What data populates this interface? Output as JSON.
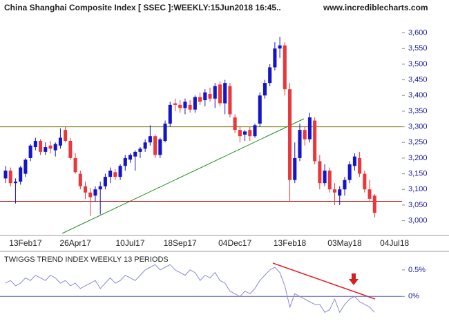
{
  "chart_data": [
    {
      "type": "candlestick",
      "title": "China Shanghai Composite Index [ SSEC ]:WEEKLY:15Jun2018 16:45..",
      "subtitle": "www.incrediblecharts.com",
      "categories": [
        null,
        null,
        null,
        null,
        "13Feb17",
        null,
        null,
        null,
        null,
        null,
        null,
        null,
        null,
        null,
        "26Apr17",
        null,
        null,
        null,
        null,
        null,
        null,
        null,
        null,
        null,
        null,
        "10Jul17",
        null,
        null,
        null,
        null,
        null,
        null,
        null,
        null,
        null,
        "18Sep17",
        null,
        null,
        null,
        null,
        null,
        null,
        null,
        null,
        null,
        null,
        "04Dec17",
        null,
        null,
        null,
        null,
        null,
        null,
        null,
        null,
        null,
        null,
        "13Feb18",
        null,
        null,
        null,
        null,
        null,
        null,
        null,
        null,
        null,
        null,
        "03May18",
        null,
        null,
        null,
        null,
        null,
        null,
        null,
        null,
        null,
        "04Jul18",
        null
      ],
      "open": [
        3135,
        3160,
        3120,
        3125,
        3150,
        3200,
        3235,
        3255,
        3220,
        3240,
        3225,
        3240,
        3290,
        3255,
        3200,
        3150,
        3110,
        3090,
        3080,
        3100,
        3110,
        3140,
        3155,
        3140,
        3175,
        3195,
        3205,
        3220,
        3230,
        3250,
        3270,
        3210,
        3255,
        3310,
        3375,
        3370,
        3360,
        3370,
        3355,
        3395,
        3385,
        3405,
        3390,
        3435,
        3375,
        3430,
        3330,
        3290,
        3275,
        3290,
        3270,
        3310,
        3400,
        3440,
        3490,
        3550,
        3560,
        3420,
        3130,
        3200,
        3290,
        3260,
        3320,
        3190,
        3120,
        3160,
        3100,
        3080,
        3100,
        3130,
        3175,
        3200,
        3150,
        3100,
        3080,
        null,
        null,
        null,
        null,
        null
      ],
      "high": [
        3175,
        3170,
        3135,
        3175,
        3200,
        3245,
        3265,
        3260,
        3250,
        3255,
        3250,
        3295,
        3300,
        3265,
        3215,
        3160,
        3125,
        3105,
        3110,
        3125,
        3150,
        3170,
        3165,
        3180,
        3210,
        3215,
        3225,
        3235,
        3260,
        3305,
        3275,
        3265,
        3320,
        3380,
        3390,
        3385,
        3390,
        3385,
        3400,
        3410,
        3420,
        3425,
        3440,
        3445,
        3450,
        3440,
        3340,
        3300,
        3290,
        3300,
        3310,
        3410,
        3450,
        3500,
        3570,
        3587,
        3570,
        3440,
        3250,
        3310,
        3300,
        3345,
        3330,
        3210,
        3180,
        3170,
        3120,
        3110,
        3140,
        3190,
        3215,
        3220,
        3160,
        3130,
        3085,
        null,
        null,
        null,
        null,
        null
      ],
      "low": [
        3120,
        3110,
        3055,
        3115,
        3140,
        3190,
        3225,
        3210,
        3210,
        3215,
        3205,
        3230,
        3250,
        3195,
        3150,
        3100,
        3070,
        3015,
        3060,
        3020,
        3100,
        3120,
        3130,
        3130,
        3160,
        3185,
        3160,
        3200,
        3220,
        3240,
        3200,
        3200,
        3250,
        3300,
        3350,
        3345,
        3340,
        3345,
        3345,
        3370,
        3365,
        3380,
        3360,
        3365,
        3340,
        3330,
        3280,
        3250,
        3255,
        3255,
        3265,
        3300,
        3390,
        3430,
        3480,
        3520,
        3400,
        3060,
        3120,
        3190,
        3240,
        3250,
        3180,
        3100,
        3110,
        3090,
        3050,
        3050,
        3080,
        3120,
        3160,
        3140,
        3090,
        3060,
        3010,
        null,
        null,
        null,
        null,
        null
      ],
      "close": [
        3160,
        3120,
        3125,
        3170,
        3195,
        3240,
        3255,
        3220,
        3235,
        3230,
        3245,
        3265,
        3255,
        3200,
        3155,
        3110,
        3090,
        3075,
        3100,
        3110,
        3140,
        3160,
        3140,
        3175,
        3200,
        3210,
        3220,
        3230,
        3250,
        3270,
        3210,
        3260,
        3310,
        3370,
        3370,
        3360,
        3380,
        3355,
        3395,
        3380,
        3410,
        3390,
        3430,
        3375,
        3440,
        3340,
        3290,
        3270,
        3285,
        3270,
        3305,
        3400,
        3440,
        3490,
        3550,
        3560,
        3420,
        3130,
        3200,
        3290,
        3260,
        3330,
        3190,
        3120,
        3160,
        3100,
        3090,
        3100,
        3130,
        3180,
        3205,
        3150,
        3100,
        3070,
        3025,
        null,
        null,
        null,
        null,
        null
      ],
      "up_color": "#1414c8",
      "down_color": "#e8383c",
      "ylim": [
        2955,
        3705
      ],
      "yticks": [
        {
          "value": 3000,
          "label": "3,000"
        },
        {
          "value": 3050,
          "label": "3,050"
        },
        {
          "value": 3100,
          "label": "3,100"
        },
        {
          "value": 3150,
          "label": "3,150"
        },
        {
          "value": 3200,
          "label": "3,200"
        },
        {
          "value": 3250,
          "label": "3,250"
        },
        {
          "value": 3300,
          "label": "3,300"
        },
        {
          "value": 3350,
          "label": "3,350"
        },
        {
          "value": 3400,
          "label": "3,400"
        },
        {
          "value": 3450,
          "label": "3,450"
        },
        {
          "value": 3500,
          "label": "3,500"
        },
        {
          "value": 3550,
          "label": "3,550"
        },
        {
          "value": 3600,
          "label": "3,600"
        }
      ],
      "hlines": [
        {
          "value": 3300,
          "color": "#707000"
        },
        {
          "value": 3062,
          "color": "#c00000"
        }
      ]
    },
    {
      "type": "line",
      "title": "TWIGGS TREND INDEX WEEKLY 13 PERIODS",
      "values": [
        0.25,
        0.3,
        0.2,
        0.25,
        0.35,
        0.3,
        0.4,
        0.35,
        0.3,
        0.4,
        0.35,
        0.25,
        0.3,
        0.2,
        0.25,
        0.15,
        0.2,
        0.25,
        0.3,
        0.15,
        0.25,
        0.35,
        0.25,
        0.3,
        0.4,
        0.35,
        0.3,
        0.4,
        0.5,
        0.55,
        0.6,
        0.5,
        0.55,
        0.6,
        0.5,
        0.45,
        0.4,
        0.5,
        0.45,
        0.3,
        0.4,
        0.35,
        0.45,
        0.3,
        0.25,
        0.1,
        0.05,
        0.0,
        0.1,
        0.05,
        0.15,
        0.3,
        0.4,
        0.5,
        0.55,
        0.45,
        0.2,
        -0.2,
        0.05,
        0.0,
        -0.05,
        -0.1,
        -0.15,
        -0.15,
        -0.3,
        -0.25,
        -0.05,
        -0.3,
        -0.15,
        -0.05,
        0.0,
        -0.1,
        -0.15,
        -0.2,
        -0.3,
        null,
        null,
        null,
        null,
        null
      ],
      "color": "#8888d8",
      "ylim": [
        -0.53,
        0.85
      ],
      "yticks": [
        {
          "value": 0,
          "label": "0%"
        },
        {
          "value": 0.5,
          "label": "0.5%"
        }
      ],
      "hlines": [
        {
          "value": 0,
          "color": "#5555bb"
        }
      ]
    }
  ]
}
